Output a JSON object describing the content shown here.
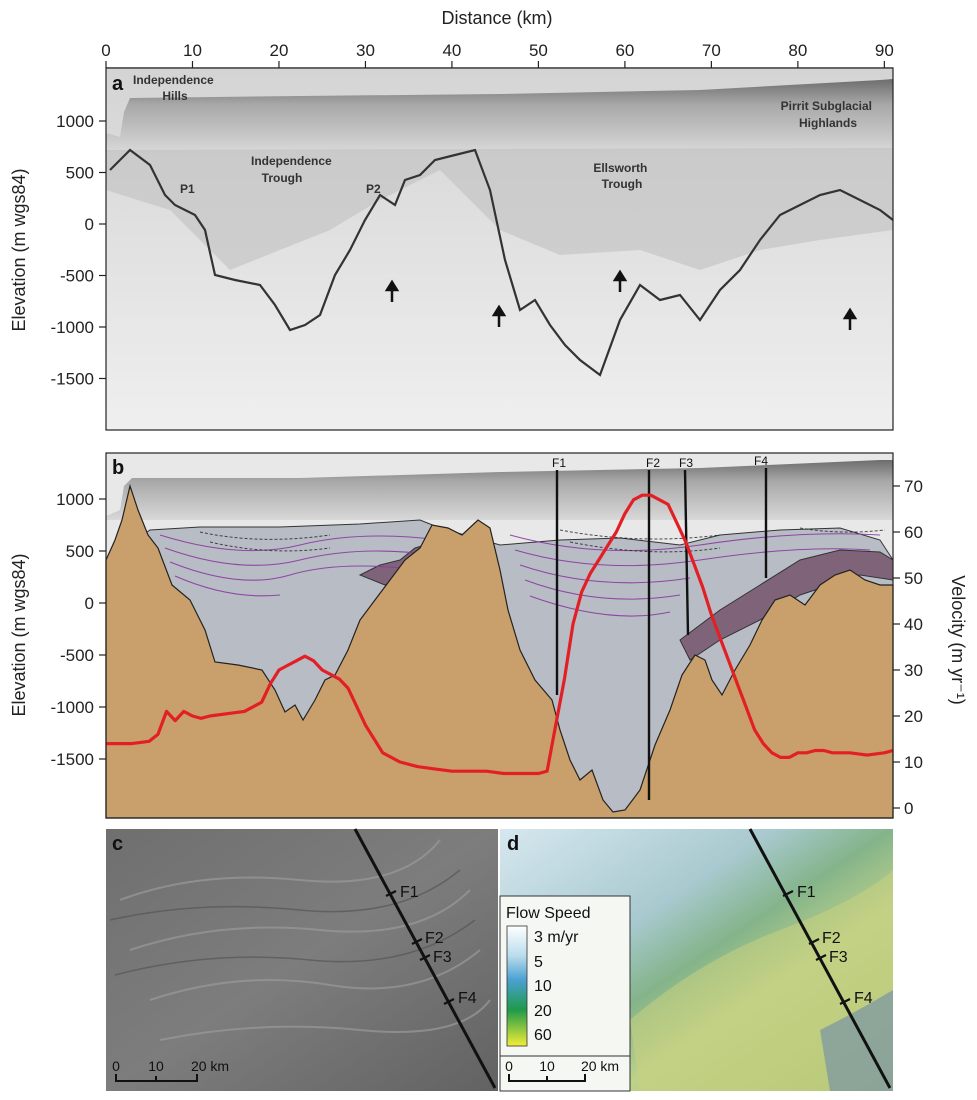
{
  "panels": {
    "a": "a",
    "b": "b",
    "c": "c",
    "d": "d"
  },
  "axes": {
    "x_label": "Distance (km)",
    "y_label": "Elevation (m wgs84)",
    "y2_label": "Velocity (m yr⁻¹)",
    "x_ticks": [
      "0",
      "10",
      "20",
      "30",
      "40",
      "50",
      "60",
      "70",
      "80",
      "90"
    ],
    "y_ticks": [
      "1000",
      "500",
      "0",
      "-500",
      "-1000",
      "-1500"
    ],
    "y2_ticks": [
      "70",
      "60",
      "50",
      "40",
      "30",
      "20",
      "10",
      "0"
    ]
  },
  "features": {
    "independence_hills": [
      "Independence",
      "Hills"
    ],
    "independence_trough": [
      "Independence",
      "Trough"
    ],
    "ellsworth_trough": [
      "Ellsworth",
      "Trough"
    ],
    "pirrit": [
      "Pirrit Subglacial",
      "Highlands"
    ],
    "p1": "P1",
    "p2": "P2"
  },
  "faults": [
    "F1",
    "F2",
    "F3",
    "F4"
  ],
  "legend": {
    "title": "Flow Speed",
    "entries": [
      "3 m/yr",
      "5",
      "10",
      "20",
      "60"
    ]
  },
  "scalebar": {
    "ticks": [
      "0",
      "10",
      "20 km"
    ]
  },
  "colors": {
    "bedrock": "#c9a06b",
    "basal_ice": "#b8bcc5",
    "purple_unit": "#7f6479",
    "velocity_line": "#e31f26",
    "layer_line": "#8a3aa0"
  },
  "chart_data": {
    "type": "line",
    "title": "",
    "xlabel": "Distance (km)",
    "ylabel": "Velocity (m yr⁻¹)",
    "xlim": [
      0,
      91
    ],
    "ylim": [
      0,
      75
    ],
    "series": [
      {
        "name": "",
        "x": [
          0,
          3,
          5,
          6,
          7,
          8,
          9,
          10,
          11,
          12,
          14,
          16,
          18,
          19,
          20,
          21,
          22,
          23,
          24,
          25,
          26,
          27,
          28,
          30,
          32,
          34,
          36,
          38,
          40,
          42,
          44,
          46,
          48,
          50,
          51,
          52,
          53,
          54,
          55,
          56,
          57,
          58,
          59,
          60,
          61,
          62,
          63,
          64,
          65,
          66,
          67,
          68,
          69,
          70,
          71,
          72,
          73,
          74,
          75,
          76,
          77,
          78,
          79,
          80,
          81,
          82,
          83,
          84,
          86,
          88,
          90,
          91
        ],
        "y": [
          14,
          14,
          14.5,
          16,
          21,
          19,
          21,
          20,
          19.5,
          20,
          20.5,
          21,
          23,
          27,
          30,
          31,
          32,
          33,
          32,
          30,
          29,
          28,
          26,
          18,
          12,
          10,
          9,
          8.5,
          8,
          8,
          8,
          7.5,
          7.5,
          7.5,
          8,
          18,
          28,
          40,
          47,
          51,
          54,
          57,
          60,
          64,
          67,
          68,
          68,
          67,
          66,
          62,
          58,
          53,
          48,
          42,
          37,
          32,
          27,
          22,
          17,
          14,
          12,
          11,
          11,
          12,
          12,
          12.5,
          12.5,
          12,
          12,
          11.5,
          12,
          12.5
        ]
      }
    ]
  }
}
